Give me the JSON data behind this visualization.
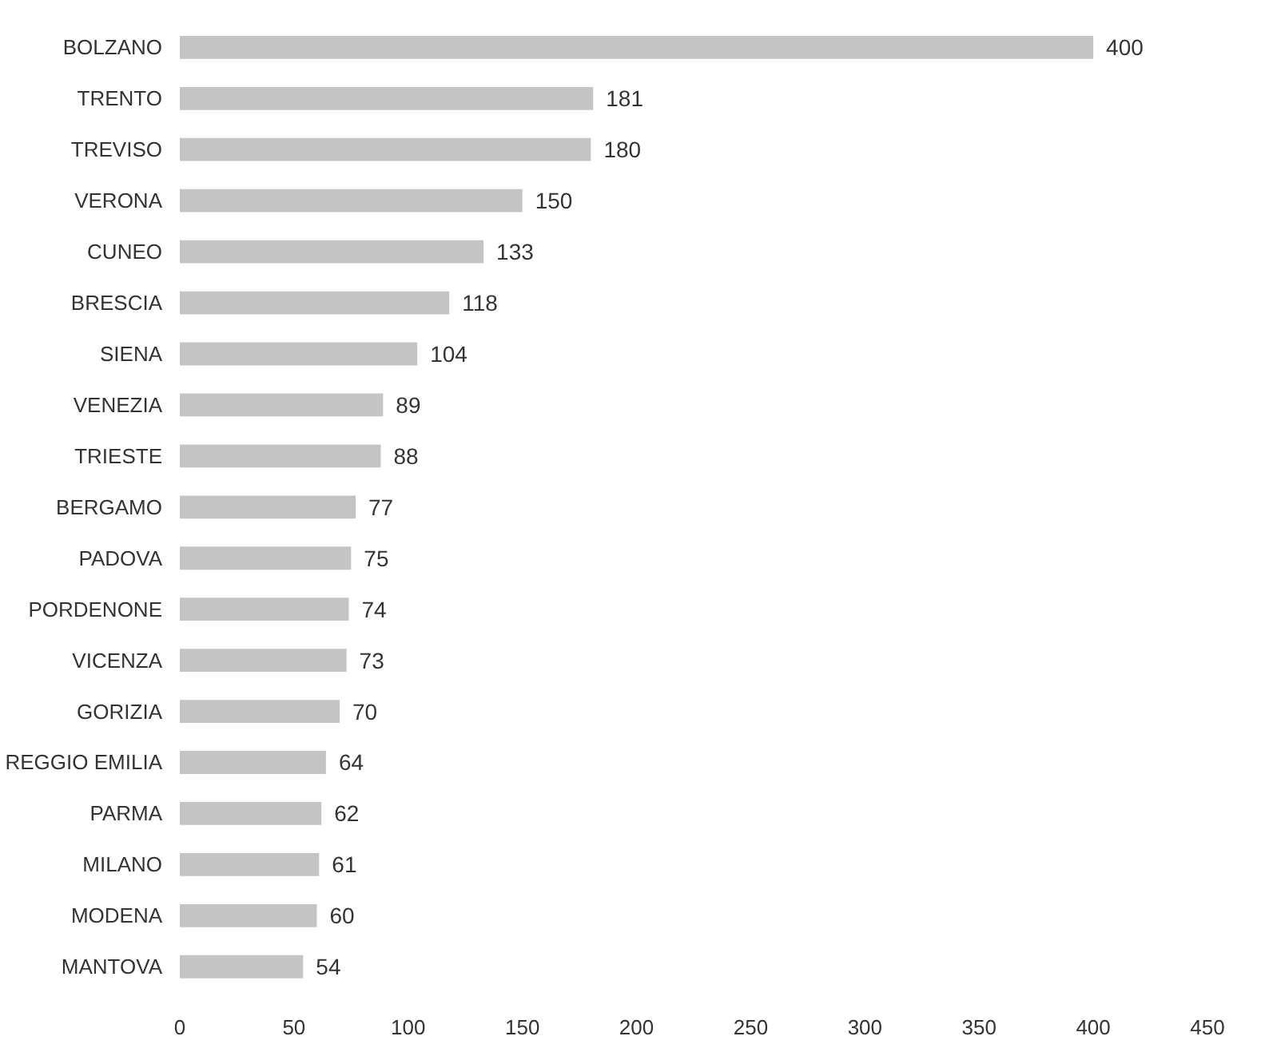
{
  "chart_data": {
    "type": "bar",
    "orientation": "horizontal",
    "categories": [
      "BOLZANO",
      "TRENTO",
      "TREVISO",
      "VERONA",
      "CUNEO",
      "BRESCIA",
      "SIENA",
      "VENEZIA",
      "TRIESTE",
      "BERGAMO",
      "PADOVA",
      "PORDENONE",
      "VICENZA",
      "GORIZIA",
      "REGGIO EMILIA",
      "PARMA",
      "MILANO",
      "MODENA",
      "MANTOVA"
    ],
    "values": [
      400,
      181,
      180,
      150,
      133,
      118,
      104,
      89,
      88,
      77,
      75,
      74,
      73,
      70,
      64,
      62,
      61,
      60,
      54
    ],
    "color": "#c4c4c4",
    "xlim": [
      0,
      450
    ],
    "xticks": [
      0,
      50,
      100,
      150,
      200,
      250,
      300,
      350,
      400,
      450
    ],
    "data_labels": true,
    "grid": false
  }
}
